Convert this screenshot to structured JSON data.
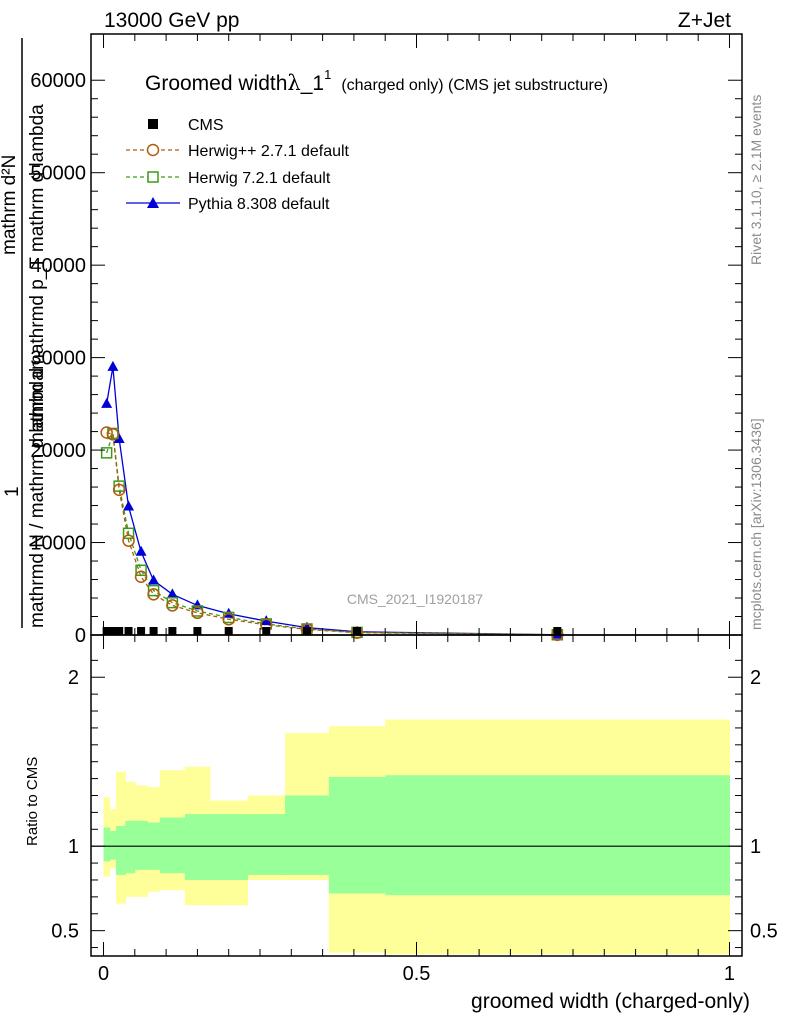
{
  "header": {
    "left": "13000 GeV pp",
    "right": "Z+Jet"
  },
  "side_text": {
    "rivet": "Rivet 3.1.10, ≥ 2.1M events",
    "mcplots": "mcplots.cern.ch [arXiv:1306.3436]"
  },
  "watermark": "CMS_2021_I1920187",
  "ylabel_main": {
    "one": "1",
    "lower": "mathrmd N / mathrm d lambda",
    "upper": "mathrm d",
    "frac_num": "mathrm d²N",
    "frac_den": "mathrmd p_T mathrm d lambda"
  },
  "ylabel_ratio": "Ratio to CMS",
  "xlabel": "groomed width (charged-only)",
  "colors": {
    "herwigpp": "#b15c0b",
    "herwig7": "#3a9a1a",
    "pythia": "#0000d8",
    "band_outer": "#ffff99",
    "band_inner": "#99ff99"
  },
  "chart_data": [
    {
      "type": "line",
      "panel": "main",
      "title": "Groomed width λ_1¹ (charged only) (CMS jet substructure)",
      "title_parts": {
        "main": "Groomed width",
        "lambda": "λ",
        "sub": "_1",
        "sup": "1",
        "suffix": "(charged only) (CMS jet substructure)"
      },
      "xlim": [
        -0.02,
        1.02
      ],
      "ylim": [
        0,
        65000
      ],
      "y_ticks": [
        "0",
        "10000",
        "20000",
        "30000",
        "40000",
        "50000",
        "60000"
      ],
      "legend_position": "top-left",
      "x": [
        0.005,
        0.015,
        0.025,
        0.04,
        0.06,
        0.08,
        0.11,
        0.15,
        0.2,
        0.26,
        0.325,
        0.405,
        0.725
      ],
      "series": [
        {
          "name": "CMS",
          "marker": "square-filled",
          "values": [
            200,
            200,
            200,
            200,
            200,
            200,
            200,
            200,
            200,
            200,
            150,
            100,
            20
          ]
        },
        {
          "name": "Herwig++ 2.7.1 default",
          "marker": "circle-open",
          "style": "dashed",
          "values": [
            21900,
            21700,
            15700,
            10200,
            6300,
            4400,
            3200,
            2400,
            1700,
            1100,
            600,
            250,
            20
          ]
        },
        {
          "name": "Herwig 7.2.1 default",
          "marker": "square-open",
          "style": "dashed",
          "values": [
            19700,
            21800,
            16100,
            11000,
            7000,
            4800,
            3500,
            2600,
            1900,
            1200,
            650,
            280,
            25
          ]
        },
        {
          "name": "Pythia 8.308 default",
          "marker": "triangle-filled",
          "style": "solid",
          "values": [
            25000,
            29000,
            21200,
            13900,
            9000,
            5900,
            4400,
            3200,
            2300,
            1500,
            800,
            350,
            30
          ]
        }
      ]
    },
    {
      "type": "area",
      "panel": "ratio",
      "xlim": [
        -0.02,
        1.02
      ],
      "ylim": [
        0.35,
        2.25
      ],
      "y_ticks": [
        "0.5",
        "1",
        "2"
      ],
      "x_ticks": [
        "0",
        "0.5",
        "1"
      ],
      "reference": 1,
      "bin_edges": [
        0.0,
        0.01,
        0.02,
        0.035,
        0.05,
        0.07,
        0.09,
        0.13,
        0.17,
        0.23,
        0.29,
        0.36,
        0.45,
        1.0
      ],
      "outer_band": {
        "lo": [
          0.82,
          0.87,
          0.66,
          0.7,
          0.7,
          0.73,
          0.74,
          0.65,
          0.65,
          0.8,
          0.8,
          0.37,
          0.36
        ],
        "hi": [
          1.29,
          1.22,
          1.44,
          1.38,
          1.36,
          1.35,
          1.45,
          1.47,
          1.27,
          1.3,
          1.67,
          1.71,
          1.75
        ]
      },
      "inner_band": {
        "lo": [
          0.91,
          0.92,
          0.83,
          0.84,
          0.86,
          0.86,
          0.84,
          0.8,
          0.8,
          0.83,
          0.83,
          0.72,
          0.71
        ],
        "hi": [
          1.11,
          1.09,
          1.12,
          1.15,
          1.15,
          1.14,
          1.17,
          1.19,
          1.19,
          1.19,
          1.3,
          1.41,
          1.42
        ]
      }
    }
  ]
}
